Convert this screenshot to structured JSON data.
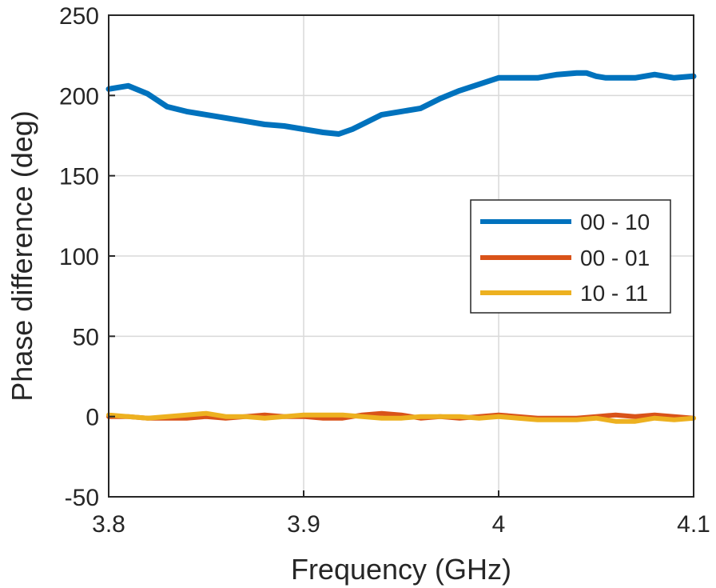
{
  "chart_data": {
    "type": "line",
    "title": "",
    "xlabel": "Frequency (GHz)",
    "ylabel": "Phase difference (deg)",
    "xlim": [
      3.8,
      4.1
    ],
    "ylim": [
      -50,
      250
    ],
    "grid": true,
    "legend_position": "center-right",
    "xticks": [
      3.8,
      3.9,
      4.0,
      4.1
    ],
    "xtick_labels": [
      "3.8",
      "3.9",
      "4",
      "4.1"
    ],
    "yticks": [
      -50,
      0,
      50,
      100,
      150,
      200,
      250
    ],
    "ytick_labels": [
      "-50",
      "0",
      "50",
      "100",
      "150",
      "200",
      "250"
    ],
    "series": [
      {
        "name": "00 - 10",
        "color": "#0072BD",
        "x": [
          3.8,
          3.81,
          3.82,
          3.83,
          3.84,
          3.85,
          3.86,
          3.87,
          3.88,
          3.89,
          3.9,
          3.91,
          3.918,
          3.925,
          3.93,
          3.94,
          3.95,
          3.96,
          3.97,
          3.98,
          3.99,
          4.0,
          4.01,
          4.02,
          4.03,
          4.04,
          4.045,
          4.05,
          4.055,
          4.06,
          4.07,
          4.08,
          4.09,
          4.1
        ],
        "values": [
          204,
          206,
          201,
          193,
          190,
          188,
          186,
          184,
          182,
          181,
          179,
          177,
          176,
          179,
          182,
          188,
          190,
          192,
          198,
          203,
          207,
          211,
          211,
          211,
          213,
          214,
          214,
          212,
          211,
          211,
          211,
          213,
          211,
          212
        ]
      },
      {
        "name": "00 - 01",
        "color": "#D95319",
        "x": [
          3.8,
          3.81,
          3.82,
          3.83,
          3.84,
          3.85,
          3.86,
          3.87,
          3.88,
          3.89,
          3.9,
          3.91,
          3.92,
          3.93,
          3.94,
          3.95,
          3.96,
          3.97,
          3.98,
          3.99,
          4.0,
          4.01,
          4.02,
          4.03,
          4.04,
          4.05,
          4.06,
          4.07,
          4.08,
          4.09,
          4.1
        ],
        "values": [
          0,
          0,
          -1,
          -1,
          -1,
          0,
          -1,
          0,
          1,
          0,
          0,
          -1,
          -1,
          1,
          2,
          1,
          -1,
          0,
          -1,
          0,
          1,
          0,
          -1,
          -1,
          -1,
          0,
          1,
          0,
          1,
          0,
          -1
        ]
      },
      {
        "name": "10 - 11",
        "color": "#EDB120",
        "x": [
          3.8,
          3.81,
          3.82,
          3.83,
          3.84,
          3.85,
          3.86,
          3.87,
          3.88,
          3.89,
          3.9,
          3.91,
          3.92,
          3.93,
          3.94,
          3.95,
          3.96,
          3.97,
          3.98,
          3.99,
          4.0,
          4.01,
          4.02,
          4.03,
          4.04,
          4.05,
          4.06,
          4.07,
          4.08,
          4.09,
          4.1
        ],
        "values": [
          1,
          0,
          -1,
          0,
          1,
          2,
          0,
          0,
          -1,
          0,
          1,
          1,
          1,
          0,
          -1,
          -1,
          0,
          0,
          0,
          -1,
          0,
          -1,
          -2,
          -2,
          -2,
          -1,
          -3,
          -3,
          -1,
          -2,
          -1
        ]
      }
    ]
  }
}
